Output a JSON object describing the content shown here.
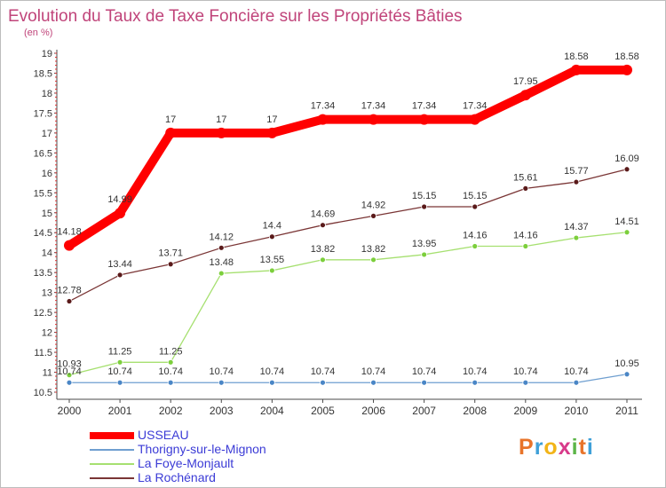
{
  "chart_data": {
    "type": "line",
    "title": "Evolution du Taux de Taxe Foncière sur les Propriétés Bâties",
    "unit_label": "(en %)",
    "x": [
      "2000",
      "2001",
      "2002",
      "2003",
      "2004",
      "2005",
      "2006",
      "2007",
      "2008",
      "2009",
      "2010",
      "2011"
    ],
    "ylim": [
      10.5,
      19
    ],
    "yticks": [
      "10.5",
      "11",
      "11.5",
      "12",
      "12.5",
      "13",
      "13.5",
      "14",
      "14.5",
      "15",
      "15.5",
      "16",
      "16.5",
      "17",
      "17.5",
      "18",
      "18.5",
      "19"
    ],
    "series": [
      {
        "name": "USSEAU",
        "color": "#ff0000",
        "values": [
          14.18,
          14.99,
          17,
          17,
          17,
          17.34,
          17.34,
          17.34,
          17.34,
          17.95,
          18.58,
          18.58
        ],
        "labels": [
          "14.18",
          "14.99",
          "17",
          "17",
          "17",
          "17.34",
          "17.34",
          "17.34",
          "17.34",
          "17.95",
          "18.58",
          "18.58"
        ]
      },
      {
        "name": "Thorigny-sur-le-Mignon",
        "color": "#6f9fd0",
        "marker_color": "#4a86c6",
        "values": [
          10.74,
          10.74,
          10.74,
          10.74,
          10.74,
          10.74,
          10.74,
          10.74,
          10.74,
          10.74,
          10.74,
          10.95
        ],
        "labels": [
          "10.74",
          "10.74",
          "10.74",
          "10.74",
          "10.74",
          "10.74",
          "10.74",
          "10.74",
          "10.74",
          "10.74",
          "10.74",
          "10.95"
        ]
      },
      {
        "name": "La Foye-Monjault",
        "color": "#a6e070",
        "marker_color": "#7ccf3c",
        "values": [
          10.93,
          11.25,
          11.25,
          13.48,
          13.55,
          13.82,
          13.82,
          13.95,
          14.16,
          14.16,
          14.37,
          14.51
        ],
        "labels": [
          "10.93",
          "11.25",
          "11.25",
          "13.48",
          "13.55",
          "13.82",
          "13.82",
          "13.95",
          "14.16",
          "14.16",
          "14.37",
          "14.51"
        ]
      },
      {
        "name": "La Rochénard",
        "color": "#7a3535",
        "marker_color": "#5a1a1a",
        "values": [
          12.78,
          13.44,
          13.71,
          14.12,
          14.4,
          14.69,
          14.92,
          15.15,
          15.15,
          15.61,
          15.77,
          16.09
        ],
        "labels": [
          "12.78",
          "13.44",
          "13.71",
          "14.12",
          "14.4",
          "14.69",
          "14.92",
          "15.15",
          "15.15",
          "15.61",
          "15.77",
          "16.09"
        ]
      }
    ],
    "legend_position": "bottom-left",
    "grid": false
  },
  "logo": {
    "letters": [
      "P",
      "r",
      "o",
      "x",
      "i",
      "t",
      "i"
    ],
    "colors": [
      "#e8742a",
      "#3fa0d8",
      "#f2b418",
      "#d83a8a",
      "#5cb548",
      "#e8742a",
      "#3fa0d8"
    ]
  },
  "colors": {
    "title": "#c0447a",
    "axis": "#4a4a4a",
    "tick_red": "#e03030"
  }
}
